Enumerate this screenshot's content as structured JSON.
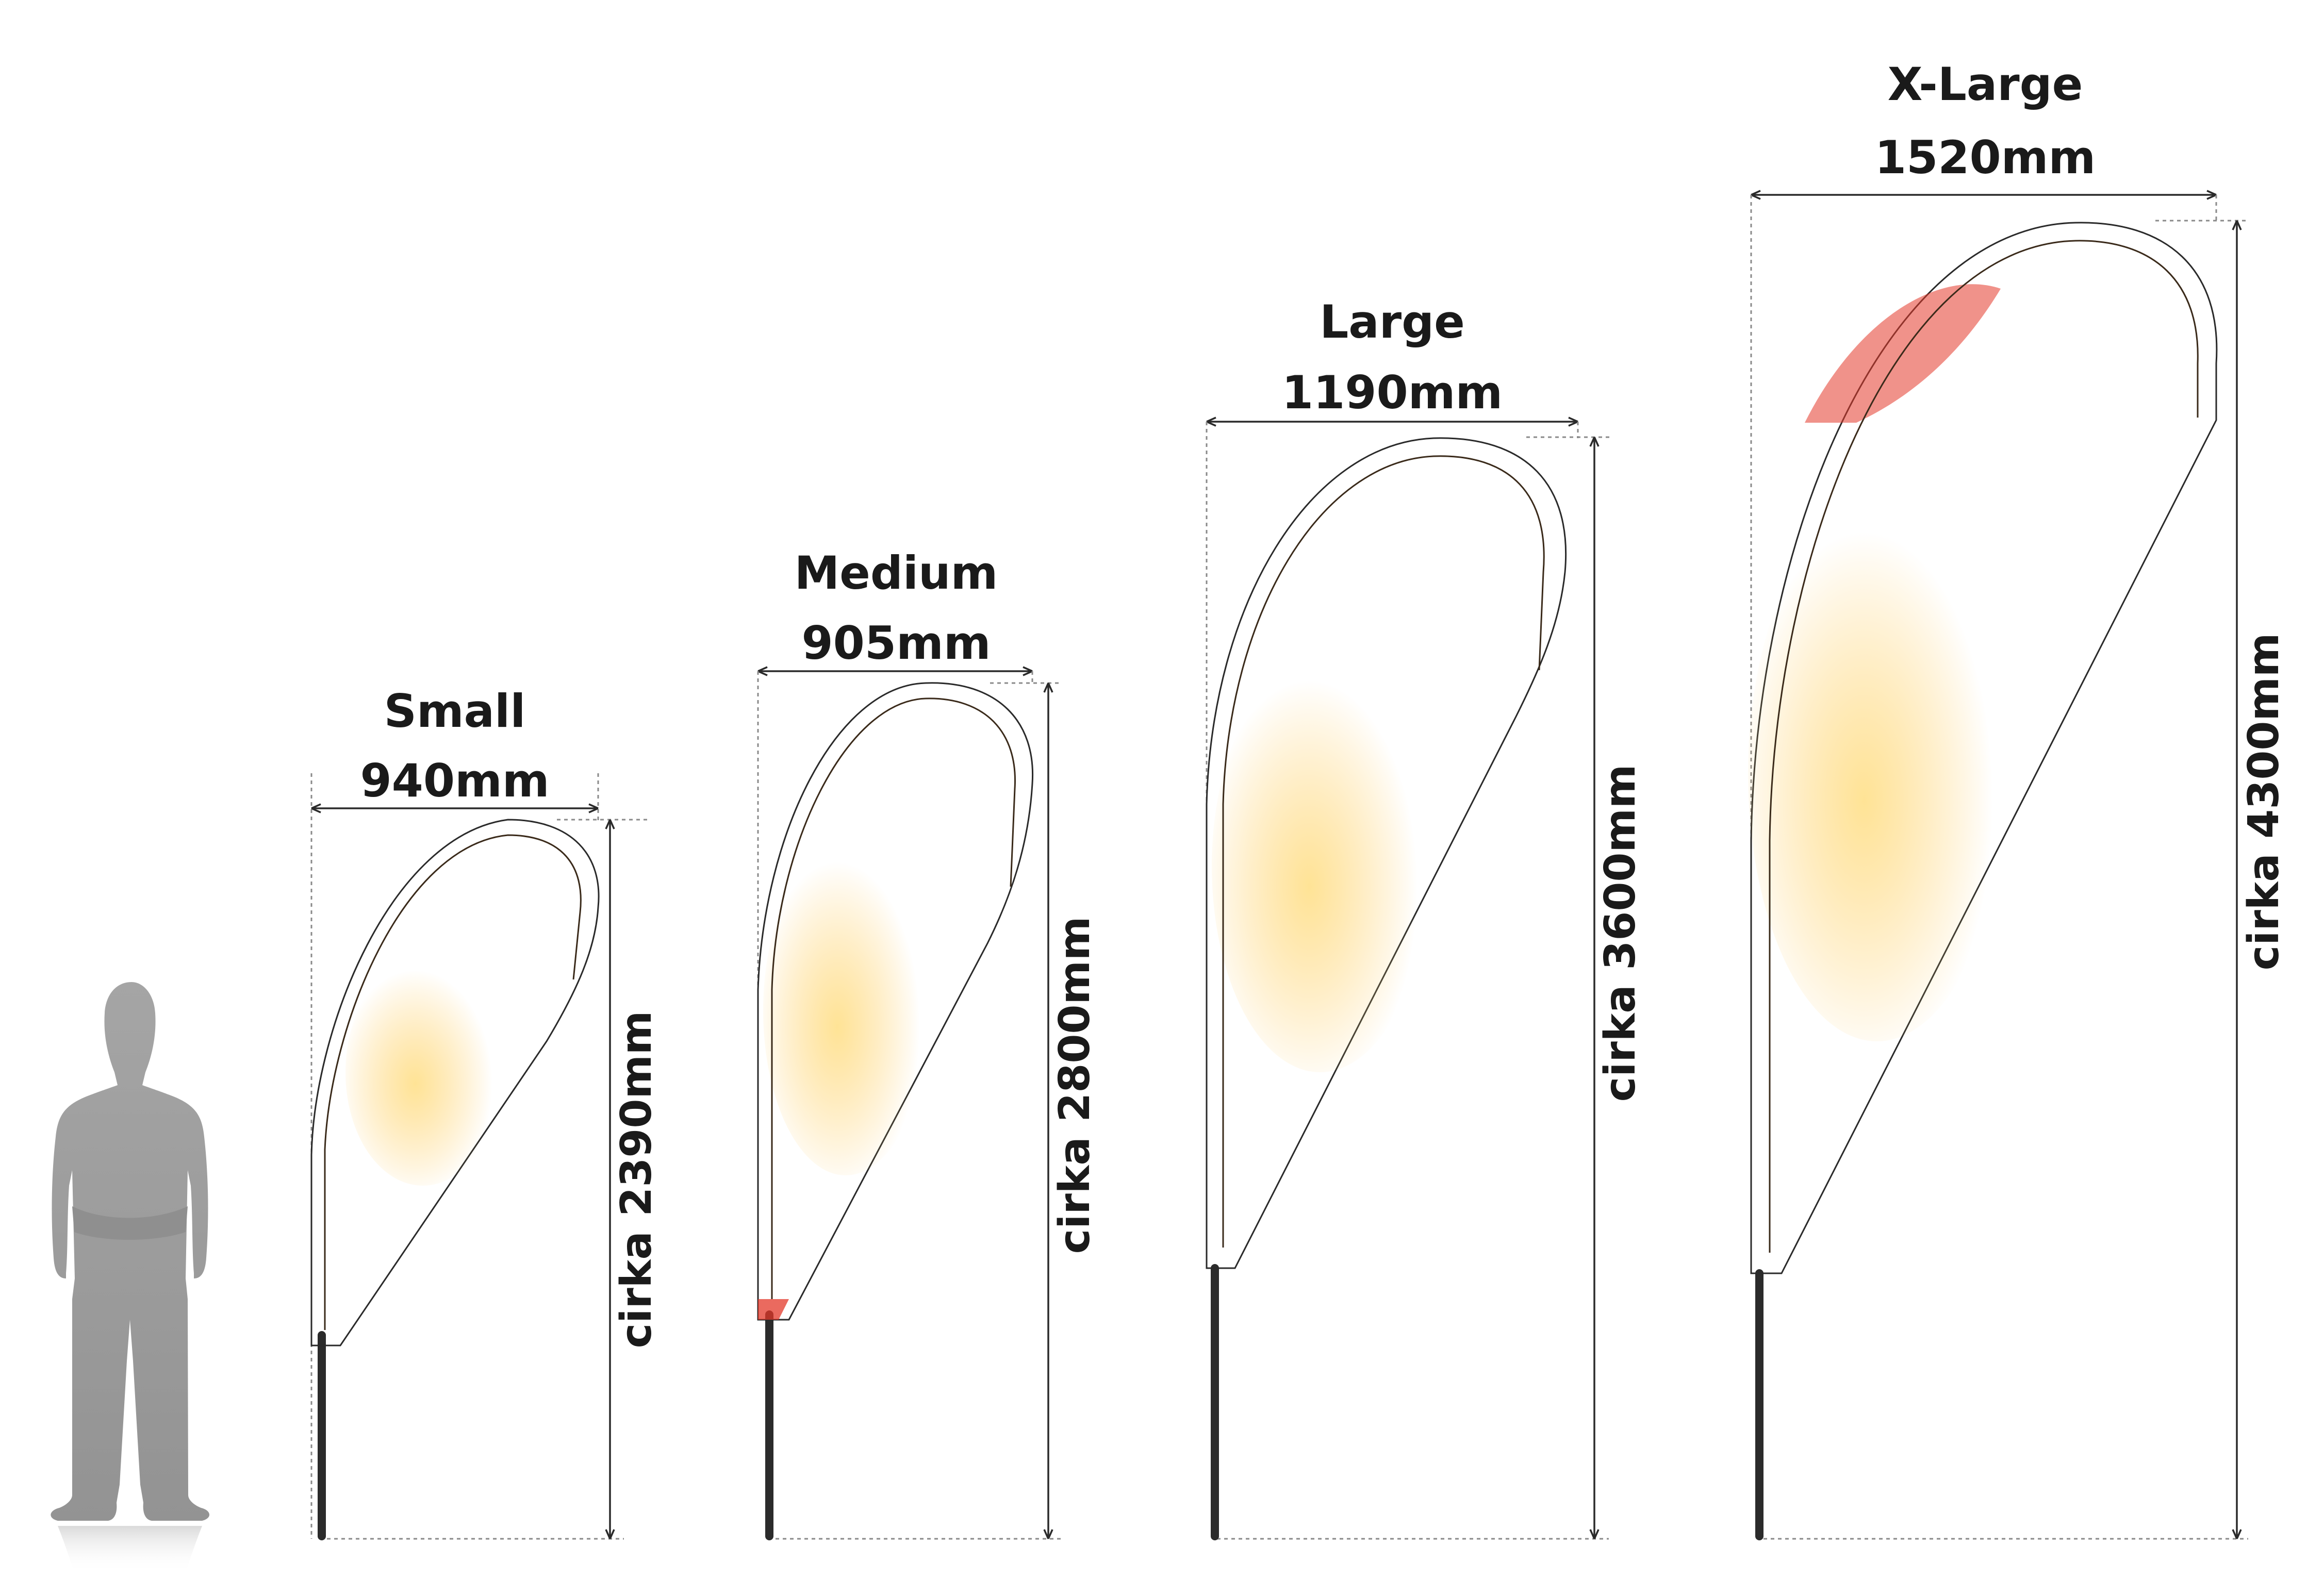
{
  "flags": [
    {
      "id": "small",
      "name": "Small",
      "width_label": "940mm",
      "height_label": "cirka 2390mm"
    },
    {
      "id": "medium",
      "name": "Medium",
      "width_label": "905mm",
      "height_label": "cirka 2800mm"
    },
    {
      "id": "large",
      "name": "Large",
      "width_label": "1190mm",
      "height_label": "cirka 3600mm"
    },
    {
      "id": "xlarge",
      "name": "X-Large",
      "width_label": "1520mm",
      "height_label": "cirka 4300mm"
    }
  ],
  "colors": {
    "flag_light": "#fcd588",
    "flag_mid": "#f7a93a",
    "flag_dark": "#ec6a28",
    "flag_red": "#e3382a",
    "person": "#9e9e9e",
    "pole": "#2b2b2b"
  }
}
